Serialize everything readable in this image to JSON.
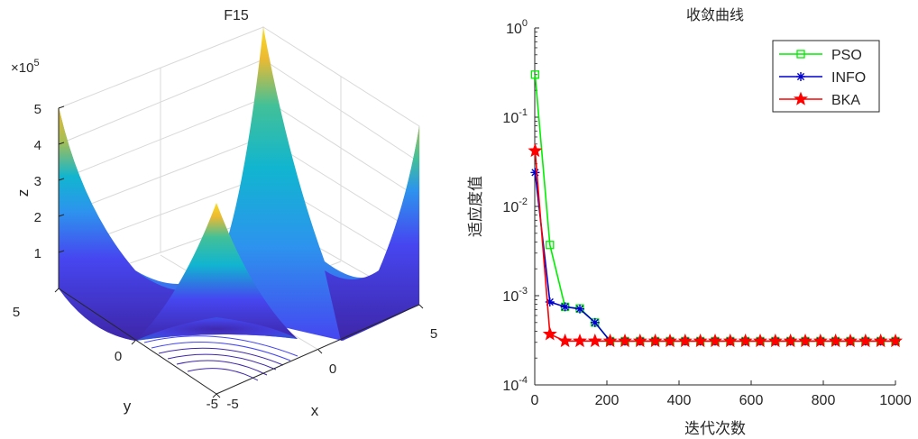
{
  "chart_data": [
    {
      "type": "surface3d",
      "title": "F15",
      "xlabel": "x",
      "ylabel": "y",
      "zlabel": "z",
      "z_exponent_label": "×10^5",
      "z_multiplier": "×10",
      "z_exponent": "5",
      "x_ticks": [
        "-5",
        "0",
        "5"
      ],
      "y_ticks": [
        "-5",
        "0",
        "5"
      ],
      "z_ticks": [
        "1",
        "2",
        "3",
        "4",
        "5"
      ],
      "xlim": [
        -5,
        5
      ],
      "ylim": [
        -5,
        5
      ],
      "zlim": [
        0,
        500000
      ],
      "colormap": [
        "#3e26a8",
        "#4646f0",
        "#2d93ee",
        "#11b5d0",
        "#42c098",
        "#a5be56",
        "#ecba32",
        "#f9dc25"
      ]
    },
    {
      "type": "line",
      "title": "收敛曲线",
      "xlabel": "迭代次数",
      "ylabel": "适应度值",
      "yscale": "log",
      "xlim": [
        0,
        1000
      ],
      "ylim": [
        0.0001,
        1
      ],
      "x_ticks": [
        "0",
        "200",
        "400",
        "600",
        "800",
        "1000"
      ],
      "y_ticks": [
        {
          "base": "10",
          "exp": "0",
          "value": 1
        },
        {
          "base": "10",
          "exp": "-1",
          "value": 0.1
        },
        {
          "base": "10",
          "exp": "-2",
          "value": 0.01
        },
        {
          "base": "10",
          "exp": "-3",
          "value": 0.001
        },
        {
          "base": "10",
          "exp": "-4",
          "value": 0.0001
        }
      ],
      "legend_position": "top-right",
      "marker_x": [
        1,
        42,
        84,
        125,
        167,
        209,
        250,
        292,
        334,
        375,
        417,
        459,
        500,
        542,
        584,
        625,
        667,
        709,
        750,
        792,
        834,
        875,
        917,
        959,
        1000
      ],
      "series": [
        {
          "name": "PSO",
          "color": "#00ee00",
          "marker": "square",
          "values": [
            0.3,
            0.0037,
            0.00075,
            0.00072,
            0.0005,
            0.00031,
            0.00031,
            0.00031,
            0.00031,
            0.00031,
            0.00031,
            0.00031,
            0.00031,
            0.00031,
            0.00031,
            0.00031,
            0.00031,
            0.00031,
            0.00031,
            0.00031,
            0.00031,
            0.00031,
            0.00031,
            0.00031,
            0.00031
          ]
        },
        {
          "name": "INFO",
          "color": "#0000cc",
          "marker": "asterisk",
          "values": [
            0.024,
            0.00085,
            0.00075,
            0.00071,
            0.0005,
            0.00031,
            0.00031,
            0.00031,
            0.00031,
            0.00031,
            0.00031,
            0.00031,
            0.00031,
            0.00031,
            0.00031,
            0.00031,
            0.00031,
            0.00031,
            0.00031,
            0.00031,
            0.00031,
            0.00031,
            0.00031,
            0.00031,
            0.00031
          ]
        },
        {
          "name": "BKA",
          "color": "#ff0000",
          "marker": "star",
          "values": [
            0.042,
            0.00037,
            0.00031,
            0.00031,
            0.00031,
            0.00031,
            0.00031,
            0.00031,
            0.00031,
            0.00031,
            0.00031,
            0.00031,
            0.00031,
            0.00031,
            0.00031,
            0.00031,
            0.00031,
            0.00031,
            0.00031,
            0.00031,
            0.00031,
            0.00031,
            0.00031,
            0.00031,
            0.00031
          ]
        }
      ]
    }
  ]
}
